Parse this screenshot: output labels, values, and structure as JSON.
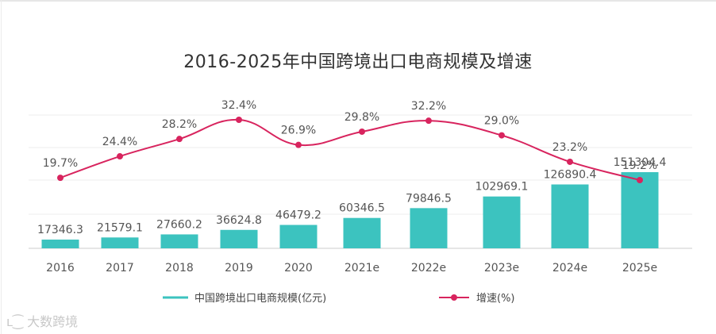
{
  "chart_data": {
    "type": "bar",
    "title": "2016-2025年中国跨境出口电商规模及增速",
    "categories": [
      "2016",
      "2017",
      "2018",
      "2019",
      "2020",
      "2021e",
      "2022e",
      "2023e",
      "2024e",
      "2025e"
    ],
    "series": [
      {
        "name": "中国跨境出口电商规模(亿元)",
        "type": "bar",
        "values": [
          17346.3,
          21579.1,
          27660.2,
          36624.8,
          46479.2,
          60346.5,
          79846.5,
          102969.1,
          126890.4,
          151304.4
        ],
        "labels": [
          "17346.3",
          "21579.1",
          "27660.2",
          "36624.8",
          "46479.2",
          "60346.5",
          "79846.5",
          "102969.1",
          "126890.4",
          "151304.4"
        ],
        "color": "#3cc3bf"
      },
      {
        "name": "增速(%)",
        "type": "line",
        "values": [
          19.7,
          24.4,
          28.2,
          32.4,
          26.9,
          29.8,
          32.2,
          29.0,
          23.2,
          19.2
        ],
        "labels": [
          "19.7%",
          "24.4%",
          "28.2%",
          "32.4%",
          "26.9%",
          "29.8%",
          "32.2%",
          "29.0%",
          "23.2%",
          "19.2%"
        ],
        "color": "#d8245e"
      }
    ],
    "legend": "bottom",
    "grid": true
  },
  "watermark": "大数跨境"
}
